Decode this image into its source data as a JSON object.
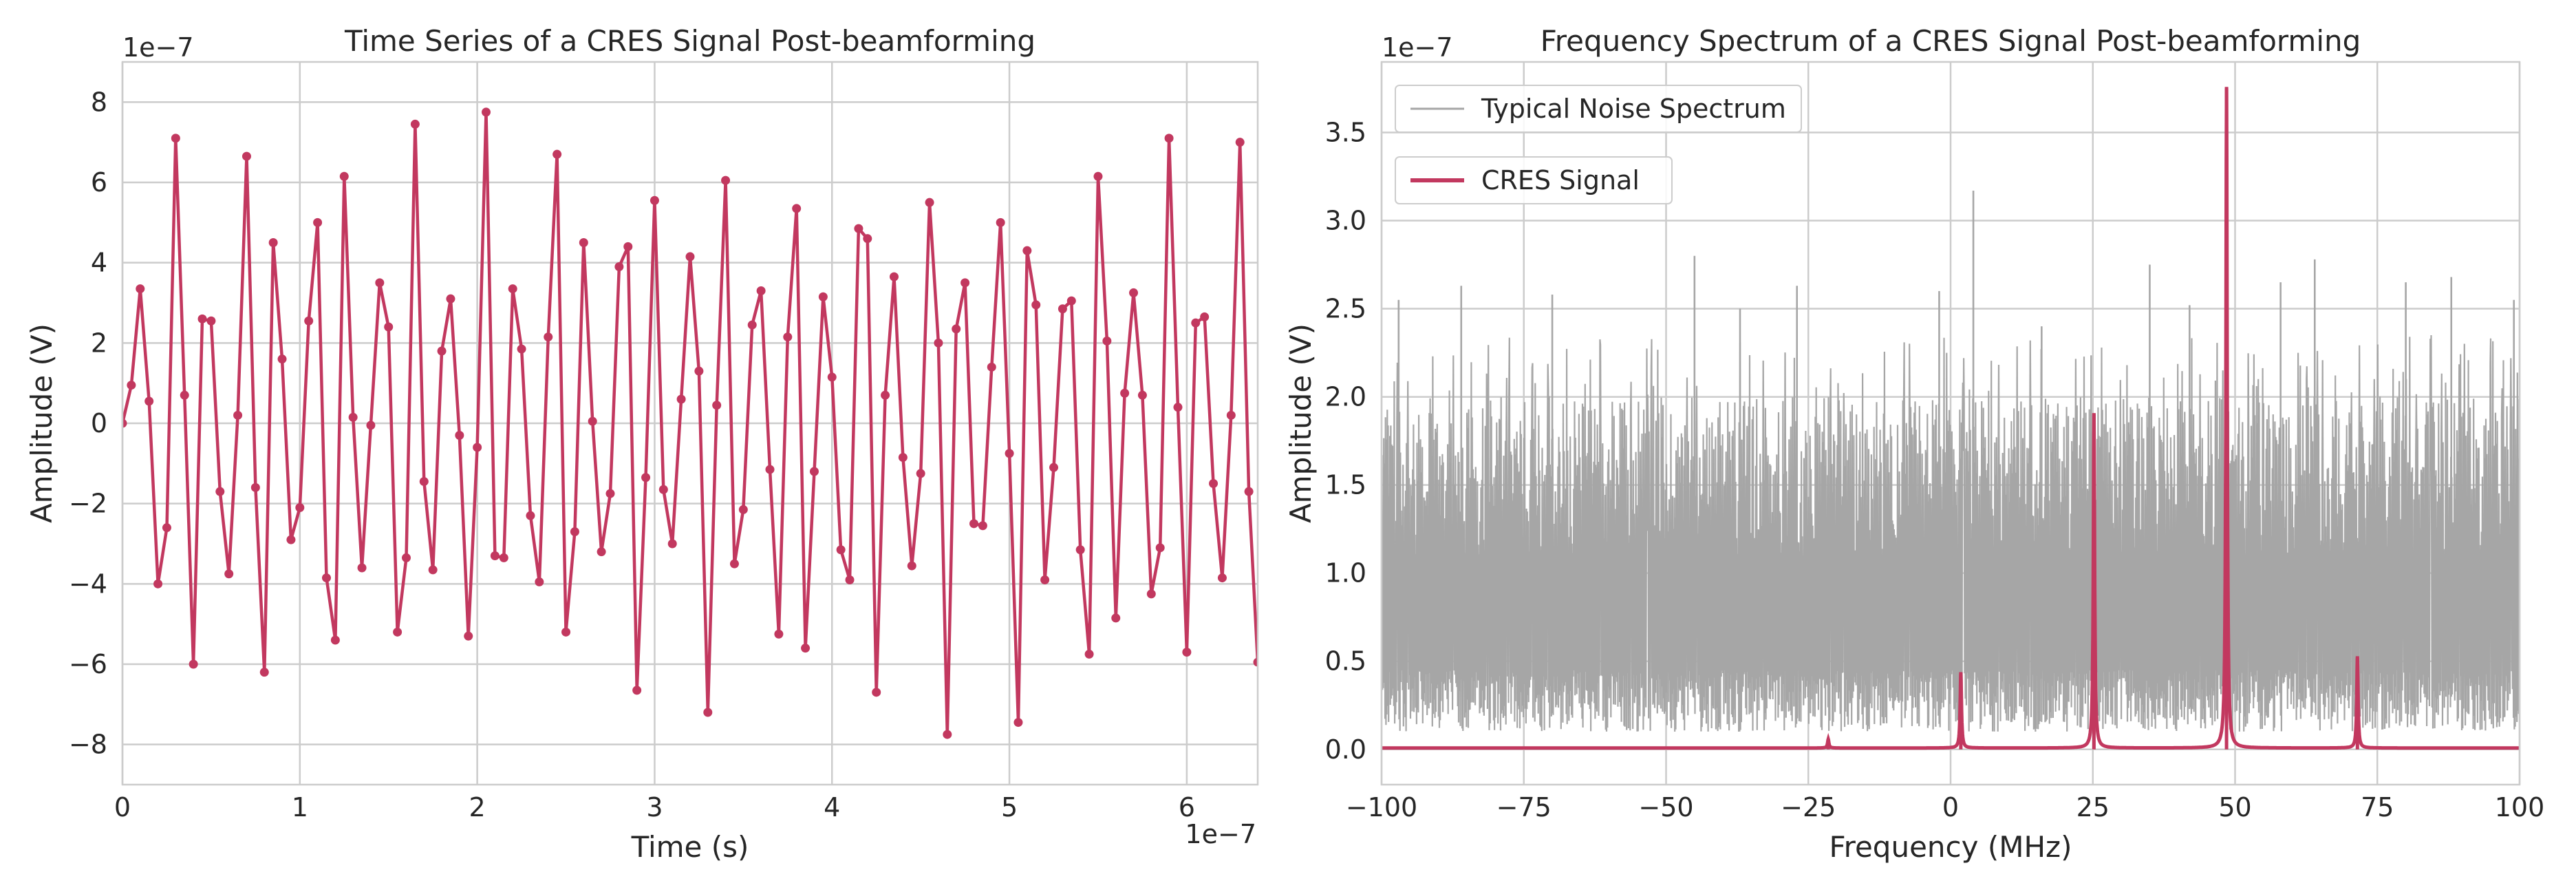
{
  "chart_data": [
    {
      "type": "line",
      "title": "Time Series of a CRES Signal Post-beamforming",
      "xlabel": "Time (s)",
      "ylabel": "Amplitude (V)",
      "x_offset_label": "1e−7",
      "y_offset_label": "1e−7",
      "xlim": [
        0,
        6.4e-07
      ],
      "ylim": [
        -9e-07,
        9e-07
      ],
      "x_ticks": [
        0,
        1e-07,
        2e-07,
        3e-07,
        4e-07,
        5e-07,
        6e-07
      ],
      "x_tick_labels": [
        "0",
        "1",
        "2",
        "3",
        "4",
        "5",
        "6"
      ],
      "y_ticks": [
        -8e-07,
        -6e-07,
        -4e-07,
        -2e-07,
        0,
        2e-07,
        4e-07,
        6e-07,
        8e-07
      ],
      "y_tick_labels": [
        "−8",
        "−6",
        "−4",
        "−2",
        "0",
        "2",
        "4",
        "6",
        "8"
      ],
      "grid": true,
      "color": "#c2385f",
      "marker": "circle",
      "x_step": 5e-09,
      "values_e7": [
        0.0,
        0.95,
        3.35,
        0.55,
        -4.0,
        -2.6,
        7.1,
        0.7,
        -6.0,
        2.6,
        2.55,
        -1.7,
        -3.75,
        0.2,
        6.65,
        -1.6,
        -6.2,
        4.5,
        1.6,
        -2.9,
        -2.1,
        2.55,
        5.0,
        -3.85,
        -5.4,
        6.15,
        0.15,
        -3.6,
        -0.05,
        3.5,
        2.4,
        -5.2,
        -3.35,
        7.45,
        -1.45,
        -3.65,
        1.8,
        3.1,
        -0.3,
        -5.3,
        -0.6,
        7.75,
        -3.3,
        -3.35,
        3.35,
        1.85,
        -2.3,
        -3.95,
        2.15,
        6.7,
        -5.2,
        -2.7,
        4.5,
        0.05,
        -3.2,
        -1.75,
        3.9,
        4.4,
        -6.65,
        -1.35,
        5.55,
        -1.65,
        -3.0,
        0.6,
        4.15,
        1.3,
        -7.2,
        0.45,
        6.05,
        -3.5,
        -2.15,
        2.45,
        3.3,
        -1.15,
        -5.25,
        2.15,
        5.35,
        -5.6,
        -1.2,
        3.15,
        1.15,
        -3.15,
        -3.9,
        4.85,
        4.6,
        -6.7,
        0.7,
        3.65,
        -0.85,
        -3.55,
        -1.25,
        5.5,
        2.0,
        -7.75,
        2.35,
        3.5,
        -2.5,
        -2.55,
        1.4,
        5.0,
        -0.75,
        -7.45,
        4.3,
        2.95,
        -3.9,
        -1.1,
        2.85,
        3.05,
        -3.15,
        -5.75,
        6.15,
        2.05,
        -4.85,
        0.75,
        3.25,
        0.7,
        -4.25,
        -3.1,
        7.1,
        0.4,
        -5.7,
        2.5,
        2.65,
        -1.5,
        -3.85,
        0.2,
        7.0,
        -1.7,
        -5.95
      ]
    },
    {
      "type": "line",
      "title": "Frequency Spectrum of a CRES Signal Post-beamforming",
      "xlabel": "Frequency (MHz)",
      "ylabel": "Amplitude (V)",
      "y_offset_label": "1e−7",
      "xlim": [
        -100,
        100
      ],
      "ylim": [
        -2e-08,
        3.9e-07
      ],
      "x_ticks": [
        -100,
        -75,
        -50,
        -25,
        0,
        25,
        50,
        75,
        100
      ],
      "x_tick_labels": [
        "−100",
        "−75",
        "−50",
        "−25",
        "0",
        "25",
        "50",
        "75",
        "100"
      ],
      "y_ticks": [
        0,
        5e-08,
        1e-07,
        1.5e-07,
        2e-07,
        2.5e-07,
        3e-07,
        3.5e-07
      ],
      "y_tick_labels": [
        "0.0",
        "0.5",
        "1.0",
        "1.5",
        "2.0",
        "2.5",
        "3.0",
        "3.5"
      ],
      "grid": true,
      "legend_placement": "top-left",
      "series": [
        {
          "name": "Typical Noise Spectrum",
          "color": "#a6a6a6",
          "kind": "dense-noise",
          "baseline_range_e7": [
            0.1,
            2.0
          ],
          "peaks": [
            {
              "x": 4,
              "y": 3.17e-07
            },
            {
              "x": -97,
              "y": 2.55e-07
            },
            {
              "x": -86,
              "y": 2.63e-07
            },
            {
              "x": -70,
              "y": 2.58e-07
            },
            {
              "x": -45,
              "y": 2.8e-07
            },
            {
              "x": -37,
              "y": 2.5e-07
            },
            {
              "x": -27,
              "y": 2.63e-07
            },
            {
              "x": -2,
              "y": 2.6e-07
            },
            {
              "x": 16,
              "y": 2.4e-07
            },
            {
              "x": 35,
              "y": 2.75e-07
            },
            {
              "x": 42,
              "y": 2.52e-07
            },
            {
              "x": 58,
              "y": 2.65e-07
            },
            {
              "x": 64,
              "y": 2.78e-07
            },
            {
              "x": 80,
              "y": 2.65e-07
            },
            {
              "x": 88,
              "y": 2.68e-07
            },
            {
              "x": 99,
              "y": 2.55e-07
            }
          ]
        },
        {
          "name": "CRES Signal",
          "color": "#c2385f",
          "baseline": 0.0,
          "peaks": [
            {
              "x": 1.8,
              "y": 4.3e-08
            },
            {
              "x": 25.2,
              "y": 1.9e-07
            },
            {
              "x": 48.5,
              "y": 3.75e-07
            },
            {
              "x": 71.5,
              "y": 5.2e-08
            },
            {
              "x": -21.5,
              "y": 5e-09
            }
          ]
        }
      ]
    }
  ]
}
